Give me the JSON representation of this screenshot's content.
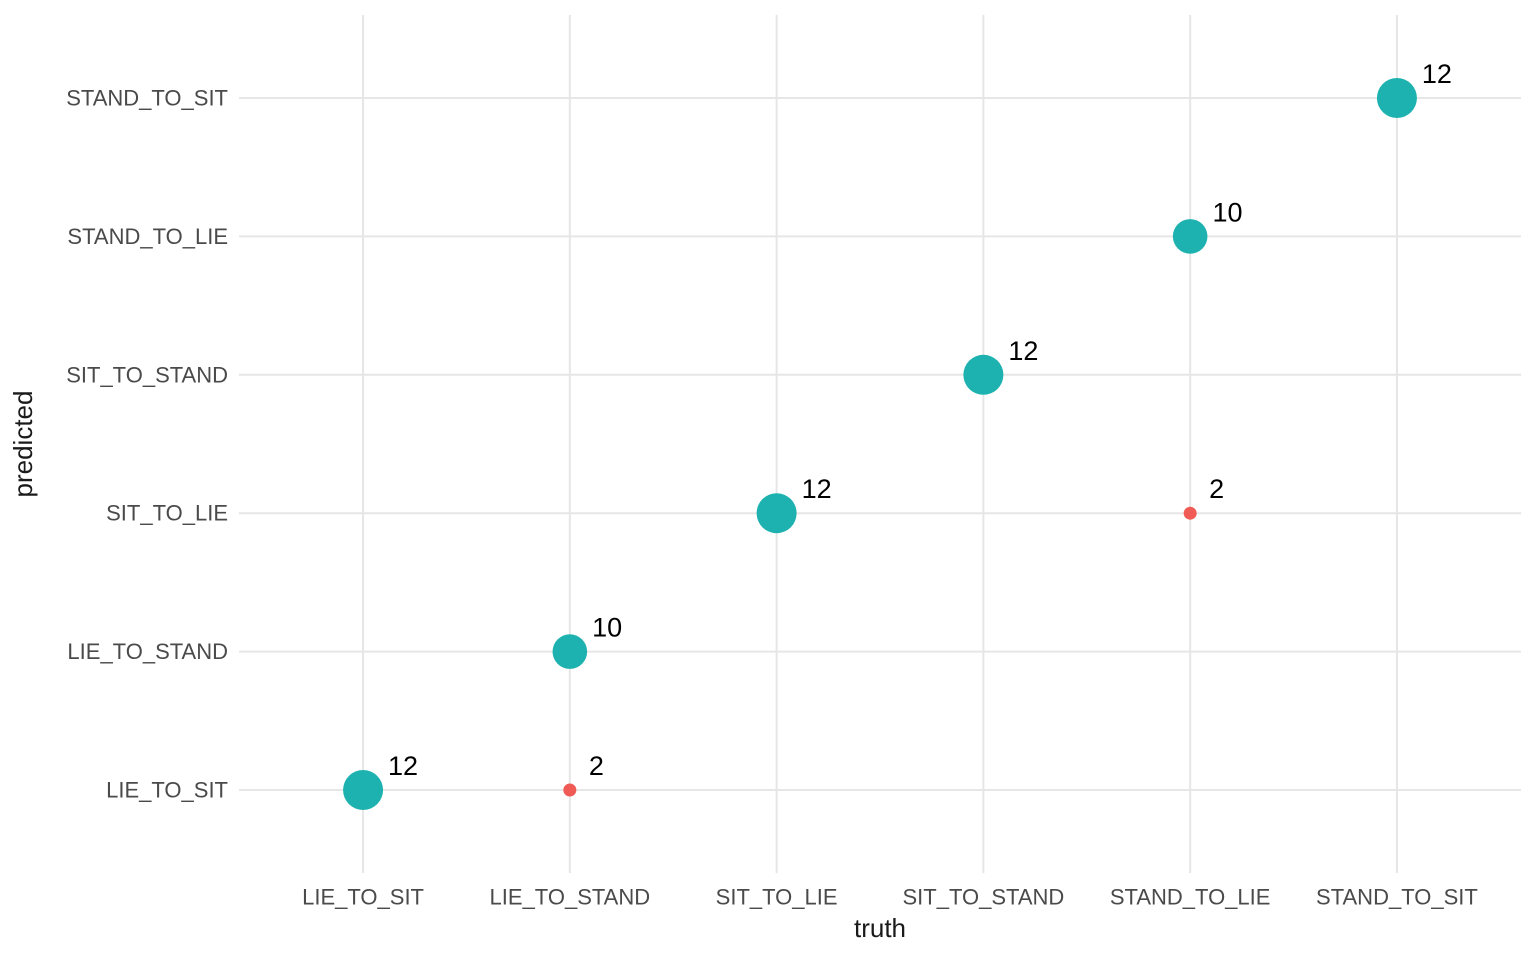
{
  "chart_data": {
    "type": "scatter",
    "subtype": "confusion-matrix-bubble",
    "title": "",
    "xlabel": "truth",
    "ylabel": "predicted",
    "x_categories": [
      "LIE_TO_SIT",
      "LIE_TO_STAND",
      "SIT_TO_LIE",
      "SIT_TO_STAND",
      "STAND_TO_LIE",
      "STAND_TO_SIT"
    ],
    "y_categories": [
      "LIE_TO_SIT",
      "LIE_TO_STAND",
      "SIT_TO_LIE",
      "SIT_TO_STAND",
      "STAND_TO_LIE",
      "STAND_TO_SIT"
    ],
    "grid": true,
    "legend": "none",
    "points": [
      {
        "truth": "LIE_TO_SIT",
        "predicted": "LIE_TO_SIT",
        "count": 12,
        "status": "correct"
      },
      {
        "truth": "LIE_TO_STAND",
        "predicted": "LIE_TO_SIT",
        "count": 2,
        "status": "incorrect"
      },
      {
        "truth": "LIE_TO_STAND",
        "predicted": "LIE_TO_STAND",
        "count": 10,
        "status": "correct"
      },
      {
        "truth": "SIT_TO_LIE",
        "predicted": "SIT_TO_LIE",
        "count": 12,
        "status": "correct"
      },
      {
        "truth": "SIT_TO_STAND",
        "predicted": "SIT_TO_STAND",
        "count": 12,
        "status": "correct"
      },
      {
        "truth": "STAND_TO_LIE",
        "predicted": "SIT_TO_LIE",
        "count": 2,
        "status": "incorrect"
      },
      {
        "truth": "STAND_TO_LIE",
        "predicted": "STAND_TO_LIE",
        "count": 10,
        "status": "correct"
      },
      {
        "truth": "STAND_TO_SIT",
        "predicted": "STAND_TO_SIT",
        "count": 12,
        "status": "correct"
      }
    ],
    "colors": {
      "correct": "#1db2b0",
      "incorrect": "#f15b55",
      "gridline": "#e6e6e6",
      "tick_label": "#4a4a4a",
      "axis_title": "#1a1a1a",
      "point_label": "#000000",
      "background": "#ffffff"
    },
    "size_scale": {
      "count_min": 2,
      "count_max": 12,
      "r_min": 6.5,
      "r_max": 20
    }
  }
}
